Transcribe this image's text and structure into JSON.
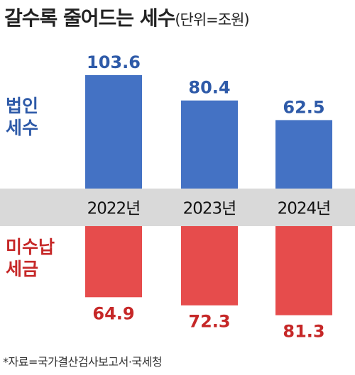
{
  "title": "갈수록 줄어드는 세수",
  "unit": "(단위=조원)",
  "source": "*자료=국가결산검사보고서·국세청",
  "chart_data": {
    "type": "bar",
    "categories": [
      "2022년",
      "2023년",
      "2024년"
    ],
    "series": [
      {
        "name": "법인 세수",
        "label_lines": [
          "법인",
          "세수"
        ],
        "values": [
          103.6,
          80.4,
          62.5
        ],
        "color": "#4472c4",
        "label_color": "#2e5aa8"
      },
      {
        "name": "미수납 세금",
        "label_lines": [
          "미수납",
          "세금"
        ],
        "values": [
          64.9,
          72.3,
          81.3
        ],
        "color": "#e64c4c",
        "label_color": "#c62828"
      }
    ],
    "ylim": [
      0,
      110
    ],
    "grid": false,
    "band_color": "#d9d9d9"
  }
}
